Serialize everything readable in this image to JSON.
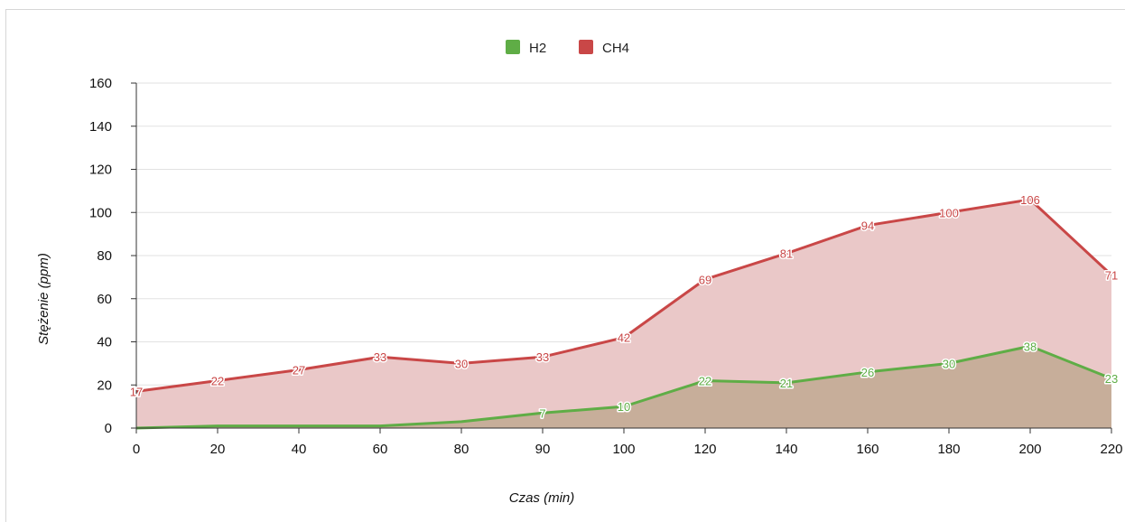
{
  "chart_data": {
    "type": "area",
    "title": "",
    "xlabel": "Czas (min)",
    "ylabel": "Stężenie (ppm)",
    "categories": [
      "0",
      "20",
      "40",
      "60",
      "80",
      "90",
      "100",
      "120",
      "140",
      "160",
      "180",
      "200",
      "220"
    ],
    "yticks": [
      "0",
      "20",
      "40",
      "60",
      "80",
      "100",
      "120",
      "140",
      "160"
    ],
    "ylim": [
      0,
      160
    ],
    "grid": true,
    "legend_position": "top-center",
    "series": [
      {
        "name": "H2",
        "color": "#5fad46",
        "fill": "#c7ae9a",
        "values": [
          0,
          1,
          1,
          1,
          3,
          7,
          10,
          22,
          21,
          26,
          30,
          38,
          23
        ],
        "labels": [
          "",
          "",
          "",
          "",
          "",
          "7",
          "10",
          "22",
          "21",
          "26",
          "30",
          "38",
          "23"
        ]
      },
      {
        "name": "CH4",
        "color": "#c94747",
        "fill": "#eac8c8",
        "values": [
          17,
          22,
          27,
          33,
          30,
          33,
          42,
          69,
          81,
          94,
          100,
          106,
          71
        ],
        "labels": [
          "17",
          "22",
          "27",
          "33",
          "30",
          "33",
          "42",
          "69",
          "81",
          "94",
          "100",
          "106",
          "71"
        ]
      }
    ]
  }
}
